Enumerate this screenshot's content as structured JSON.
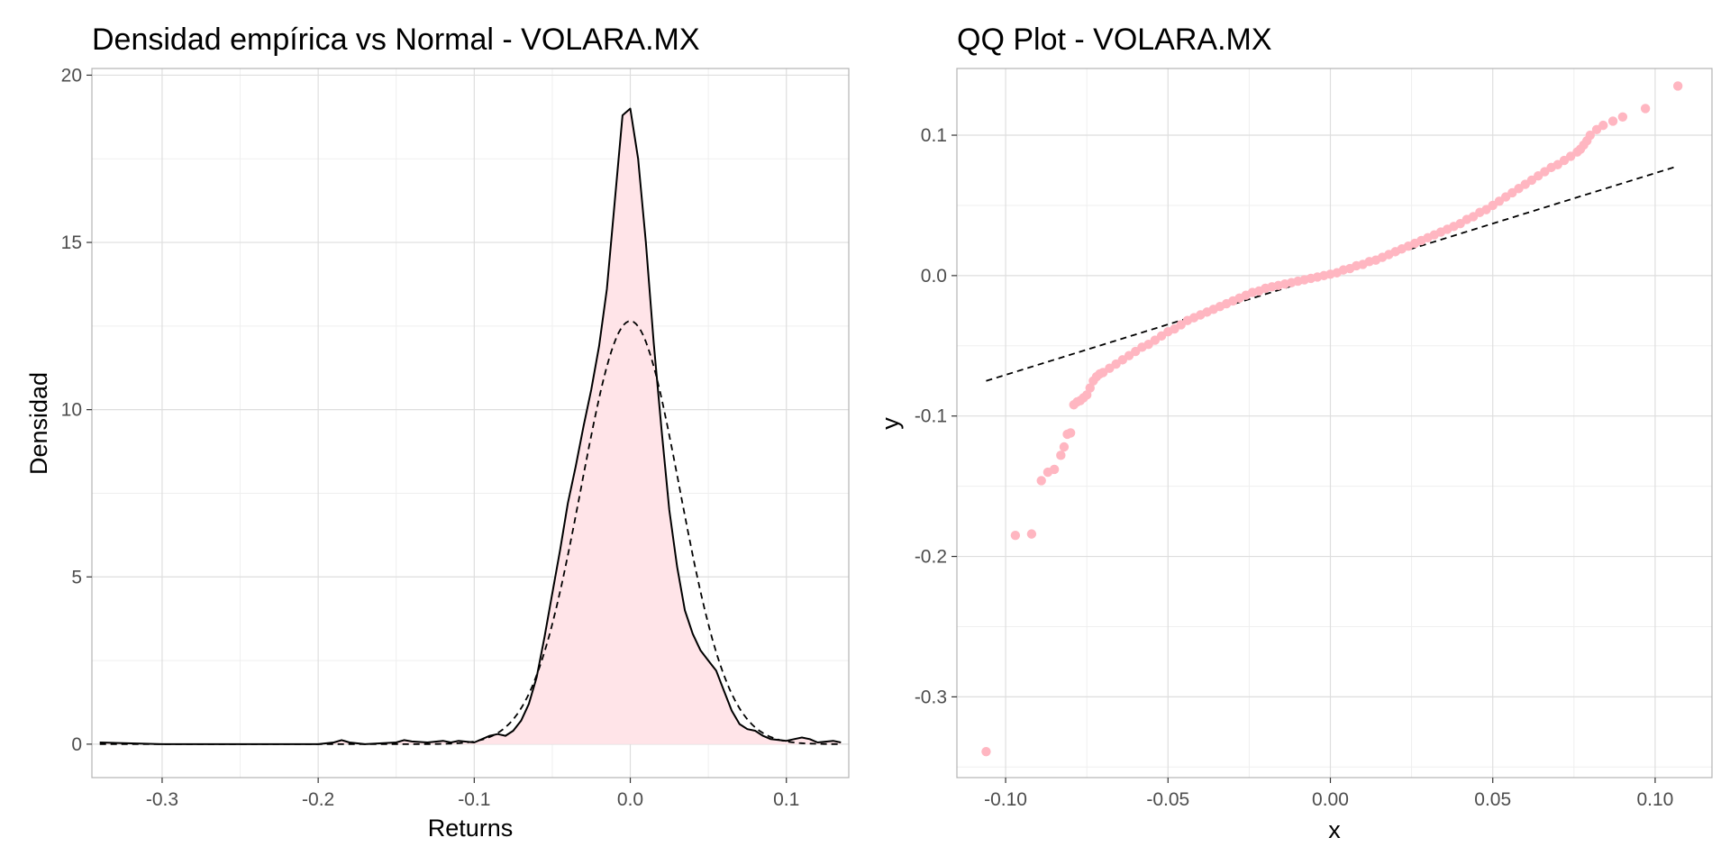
{
  "colors": {
    "fill": "#ffe4e8",
    "points": "#ffb6c1",
    "line": "#000000"
  },
  "chart_data": [
    {
      "type": "area",
      "title": "Densidad empírica vs Normal - VOLARA.MX",
      "xlabel": "Returns",
      "ylabel": "Densidad",
      "xlim": [
        -0.345,
        0.14
      ],
      "ylim": [
        -1,
        20.2
      ],
      "xticks": [
        -0.3,
        -0.2,
        -0.1,
        0.0,
        0.1
      ],
      "xtick_labels": [
        "-0.3",
        "-0.2",
        "-0.1",
        "0.0",
        "0.1"
      ],
      "yticks": [
        0,
        5,
        10,
        15,
        20
      ],
      "ytick_labels": [
        "0",
        "5",
        "10",
        "15",
        "20"
      ],
      "grid": true,
      "series": [
        {
          "style": "solid line with light pink fill",
          "x": [
            -0.34,
            -0.3,
            -0.25,
            -0.2,
            -0.19,
            -0.185,
            -0.18,
            -0.17,
            -0.15,
            -0.145,
            -0.14,
            -0.13,
            -0.12,
            -0.115,
            -0.11,
            -0.1,
            -0.09,
            -0.085,
            -0.08,
            -0.075,
            -0.07,
            -0.065,
            -0.06,
            -0.055,
            -0.05,
            -0.045,
            -0.04,
            -0.035,
            -0.03,
            -0.025,
            -0.02,
            -0.015,
            -0.01,
            -0.005,
            0.0,
            0.005,
            0.01,
            0.015,
            0.02,
            0.025,
            0.03,
            0.035,
            0.04,
            0.045,
            0.05,
            0.055,
            0.06,
            0.065,
            0.07,
            0.075,
            0.08,
            0.085,
            0.09,
            0.1,
            0.105,
            0.11,
            0.115,
            0.12,
            0.13,
            0.135
          ],
          "y": [
            0.05,
            0.0,
            0.0,
            0.0,
            0.05,
            0.12,
            0.05,
            0.0,
            0.05,
            0.12,
            0.08,
            0.05,
            0.1,
            0.05,
            0.1,
            0.05,
            0.25,
            0.3,
            0.25,
            0.4,
            0.7,
            1.2,
            2.0,
            3.2,
            4.5,
            5.8,
            7.2,
            8.3,
            9.5,
            10.6,
            11.9,
            13.6,
            16.2,
            18.8,
            19.0,
            17.5,
            15.0,
            12.0,
            9.4,
            7.0,
            5.3,
            4.0,
            3.3,
            2.8,
            2.5,
            2.2,
            1.6,
            1.0,
            0.6,
            0.45,
            0.4,
            0.25,
            0.15,
            0.1,
            0.15,
            0.2,
            0.15,
            0.05,
            0.1,
            0.05
          ]
        },
        {
          "style": "dashed line",
          "distribution": "normal",
          "mean": 0.0,
          "sd": 0.0315,
          "x_range": [
            -0.34,
            0.135
          ],
          "peak": 12.65
        }
      ]
    },
    {
      "type": "scatter",
      "title": "QQ Plot - VOLARA.MX",
      "xlabel": "x",
      "ylabel": "y",
      "xlim": [
        -0.115,
        0.1175
      ],
      "ylim": [
        -0.3575,
        0.1475
      ],
      "xticks": [
        -0.1,
        -0.05,
        0.0,
        0.05,
        0.1
      ],
      "xtick_labels": [
        "-0.10",
        "-0.05",
        "0.00",
        "0.05",
        "0.10"
      ],
      "yticks": [
        -0.3,
        -0.2,
        -0.1,
        0.0,
        0.1
      ],
      "ytick_labels": [
        "-0.3",
        "-0.2",
        "-0.1",
        "0.0",
        "0.1"
      ],
      "grid": true,
      "reference_line": {
        "style": "dashed",
        "x": [
          -0.106,
          0.107
        ],
        "y": [
          -0.075,
          0.078
        ]
      },
      "points": {
        "x": [
          -0.106,
          -0.097,
          -0.092,
          -0.089,
          -0.087,
          -0.085,
          -0.083,
          -0.082,
          -0.081,
          -0.08,
          -0.079,
          -0.078,
          -0.077,
          -0.076,
          -0.075,
          -0.074,
          -0.073,
          -0.072,
          -0.071,
          -0.07,
          -0.068,
          -0.066,
          -0.064,
          -0.062,
          -0.06,
          -0.058,
          -0.056,
          -0.054,
          -0.052,
          -0.05,
          -0.048,
          -0.046,
          -0.044,
          -0.042,
          -0.04,
          -0.038,
          -0.036,
          -0.034,
          -0.032,
          -0.03,
          -0.028,
          -0.026,
          -0.024,
          -0.022,
          -0.02,
          -0.018,
          -0.016,
          -0.014,
          -0.012,
          -0.01,
          -0.008,
          -0.006,
          -0.004,
          -0.002,
          0.0,
          0.002,
          0.004,
          0.006,
          0.008,
          0.01,
          0.012,
          0.014,
          0.016,
          0.018,
          0.02,
          0.022,
          0.024,
          0.026,
          0.028,
          0.03,
          0.032,
          0.034,
          0.036,
          0.038,
          0.04,
          0.042,
          0.044,
          0.046,
          0.048,
          0.05,
          0.052,
          0.054,
          0.056,
          0.058,
          0.06,
          0.062,
          0.064,
          0.066,
          0.068,
          0.07,
          0.072,
          0.074,
          0.076,
          0.077,
          0.078,
          0.079,
          0.08,
          0.082,
          0.084,
          0.087,
          0.09,
          0.097,
          0.107
        ],
        "y": [
          -0.339,
          -0.185,
          -0.184,
          -0.146,
          -0.14,
          -0.138,
          -0.128,
          -0.122,
          -0.113,
          -0.112,
          -0.092,
          -0.09,
          -0.089,
          -0.087,
          -0.085,
          -0.08,
          -0.075,
          -0.072,
          -0.07,
          -0.069,
          -0.066,
          -0.063,
          -0.06,
          -0.057,
          -0.054,
          -0.051,
          -0.049,
          -0.046,
          -0.043,
          -0.04,
          -0.038,
          -0.035,
          -0.032,
          -0.03,
          -0.028,
          -0.026,
          -0.024,
          -0.022,
          -0.02,
          -0.018,
          -0.016,
          -0.014,
          -0.012,
          -0.011,
          -0.009,
          -0.008,
          -0.007,
          -0.006,
          -0.005,
          -0.004,
          -0.003,
          -0.002,
          -0.001,
          0.0,
          0.001,
          0.002,
          0.004,
          0.005,
          0.007,
          0.008,
          0.01,
          0.011,
          0.013,
          0.015,
          0.017,
          0.019,
          0.021,
          0.023,
          0.025,
          0.027,
          0.029,
          0.031,
          0.033,
          0.035,
          0.037,
          0.04,
          0.042,
          0.045,
          0.047,
          0.05,
          0.053,
          0.056,
          0.059,
          0.062,
          0.065,
          0.068,
          0.071,
          0.074,
          0.077,
          0.079,
          0.082,
          0.085,
          0.088,
          0.09,
          0.093,
          0.096,
          0.1,
          0.104,
          0.107,
          0.11,
          0.113,
          0.119,
          0.135
        ]
      }
    }
  ]
}
